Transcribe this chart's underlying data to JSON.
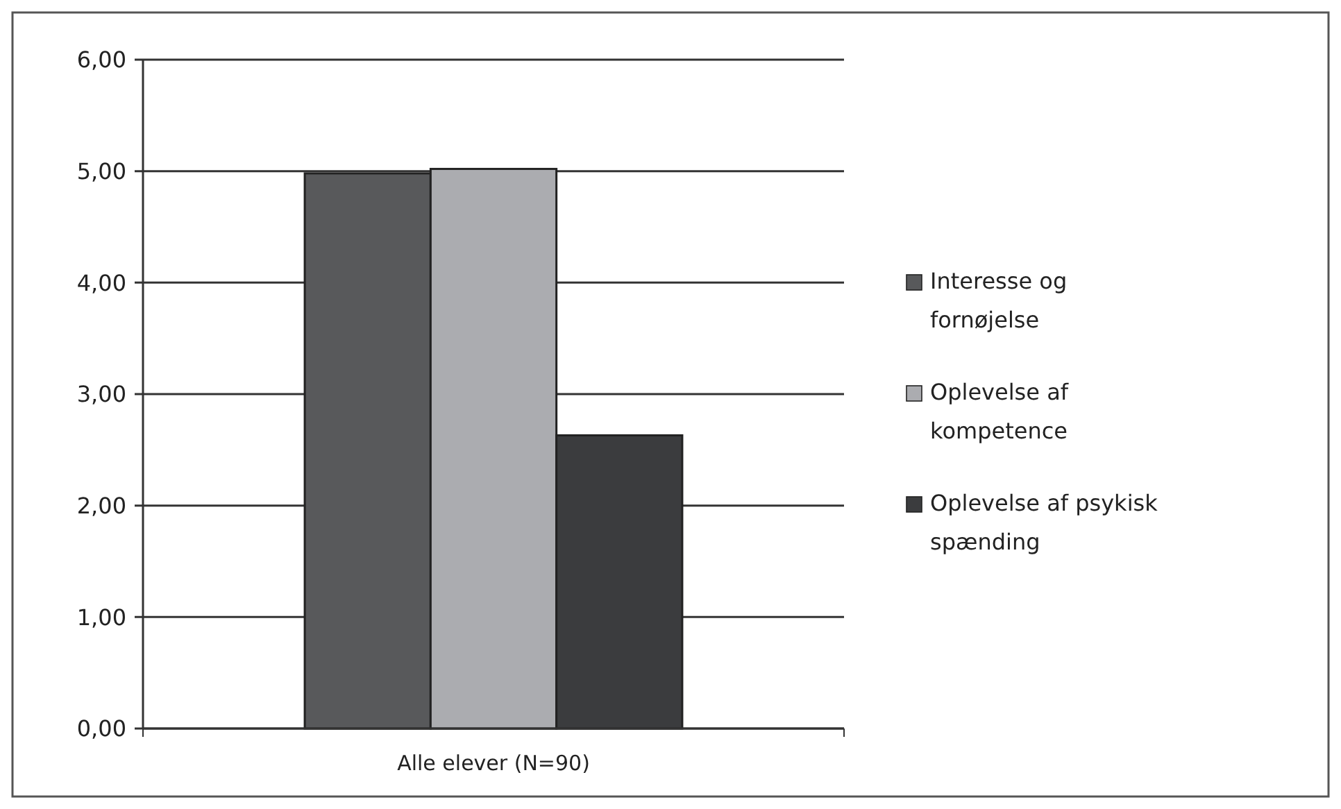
{
  "chart_data": {
    "type": "bar",
    "categories": [
      "Alle elever (N=90)"
    ],
    "series": [
      {
        "name": "Interesse og fornøjelse",
        "color": "#58595b",
        "values": [
          4.98
        ]
      },
      {
        "name": "Oplevelse af kompetence",
        "color": "#abacb0",
        "values": [
          5.02
        ]
      },
      {
        "name": "Oplevelse af psykisk spænding",
        "color": "#3b3c3e",
        "values": [
          2.63
        ]
      }
    ],
    "ylim": [
      0,
      6
    ],
    "yticks": [
      {
        "value": 0,
        "label": "0,00"
      },
      {
        "value": 1,
        "label": "1,00"
      },
      {
        "value": 2,
        "label": "2,00"
      },
      {
        "value": 3,
        "label": "3,00"
      },
      {
        "value": 4,
        "label": "4,00"
      },
      {
        "value": 5,
        "label": "5,00"
      },
      {
        "value": 6,
        "label": "6,00"
      }
    ],
    "grid": "y",
    "legend": "right"
  }
}
